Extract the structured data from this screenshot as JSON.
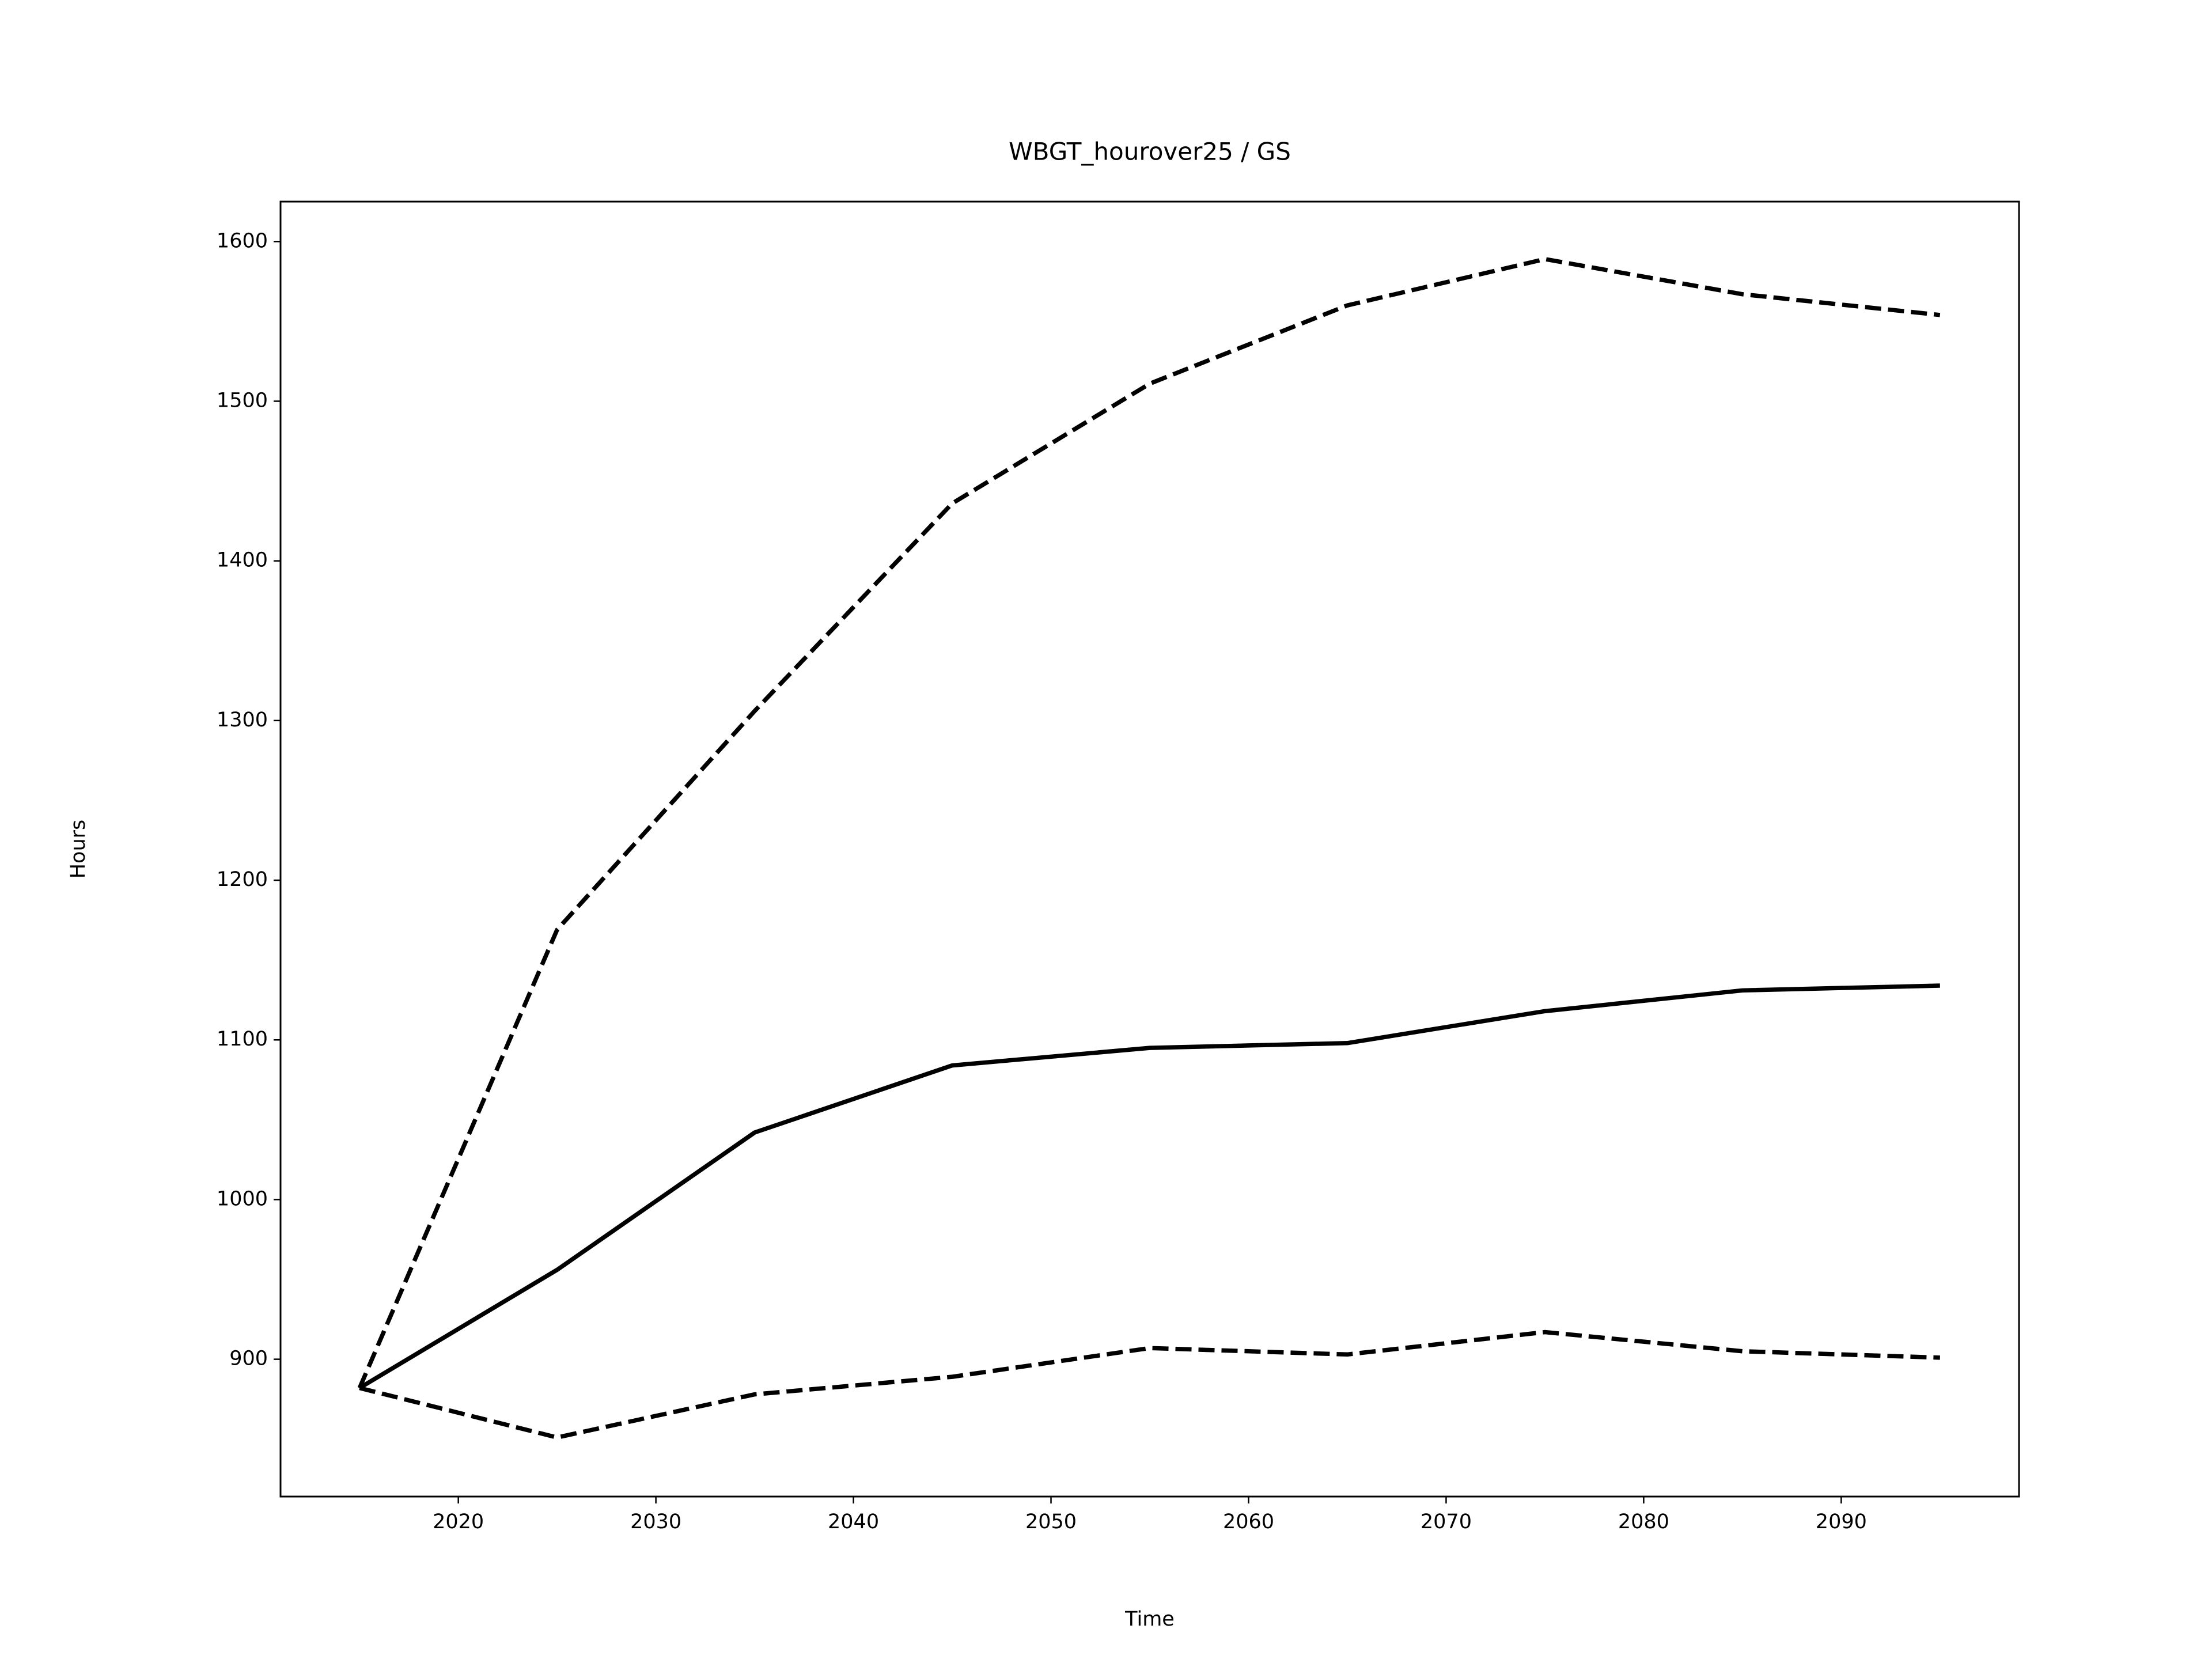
{
  "chart_data": {
    "type": "line",
    "title": "WBGT_hourover25 / GS",
    "x_label": "Time",
    "y_label": "Hours",
    "x": [
      2015,
      2025,
      2035,
      2045,
      2055,
      2065,
      2075,
      2085,
      2095
    ],
    "series": [
      {
        "color": "#000000",
        "linestyle": "solid",
        "values": [
          882,
          956,
          1042,
          1084,
          1095,
          1098,
          1118,
          1131,
          1134
        ]
      },
      {
        "color": "#000000",
        "linestyle": "dashed",
        "values": [
          882,
          1169,
          1306,
          1436,
          1511,
          1560,
          1589,
          1567,
          1554
        ]
      },
      {
        "color": "#000000",
        "linestyle": "dashed",
        "values": [
          882,
          851,
          878,
          889,
          907,
          903,
          917,
          905,
          901
        ]
      }
    ],
    "xlim": [
      2011,
      2099
    ],
    "ylim": [
      814,
      1625
    ],
    "xticks": [
      2020,
      2030,
      2040,
      2050,
      2060,
      2070,
      2080,
      2090
    ],
    "yticks": [
      900,
      1000,
      1100,
      1200,
      1300,
      1400,
      1500,
      1600
    ],
    "grid": false
  }
}
